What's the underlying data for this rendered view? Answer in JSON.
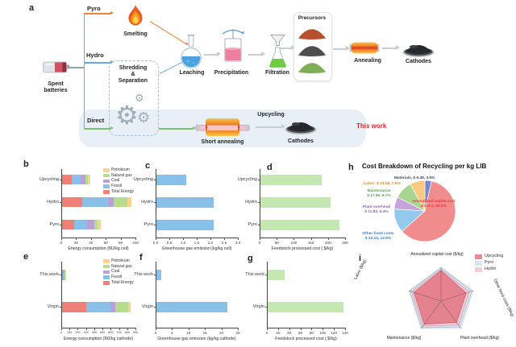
{
  "letters": {
    "a": "a",
    "b": "b",
    "c": "c",
    "d": "d",
    "e": "e",
    "f": "f",
    "g": "g",
    "h": "h",
    "i": "i"
  },
  "panel_a": {
    "labels": {
      "pyro": "Pyro",
      "hydro": "Hydro",
      "direct": "Direct",
      "smelting": "Smelting",
      "spent_batteries": "Spent\nbatteries",
      "shredding": "Shredding\n&\nSeparation",
      "leaching": "Leaching",
      "precipitation": "Precipitation",
      "filtration": "Filtration",
      "precursors": "Precursors",
      "annealing": "Annealing",
      "cathodes_top": "Cathodes",
      "short_annealing": "Short annealing",
      "upcycling": "Upcycling",
      "cathodes_bottom": "Cathodes",
      "this_work": "This work"
    },
    "icons": {
      "gear": "⚙"
    },
    "colors": {
      "pyro_arrow": "#e8863c",
      "hydro_arrow": "#6fa8d8",
      "direct_arrow": "#7cc26e",
      "process_arrow": "#c9cdd2",
      "highlight_band": "#e8eff7",
      "this_work_text": "#e0262a"
    }
  },
  "chart_data": [
    {
      "id": "b",
      "type": "stacked_bar_h",
      "xlabel": "Energy consumption (MJ/kg cell)",
      "categories": [
        "Upcycling",
        "Hydro",
        "Pyro"
      ],
      "series": [
        {
          "name": "Total Energy",
          "color": "#ef8078",
          "values": [
            13,
            27,
            16
          ]
        },
        {
          "name": "Fossil",
          "color": "#89c0e8",
          "values": [
            12,
            35,
            18
          ]
        },
        {
          "name": "Coal",
          "color": "#b9a0d6",
          "values": [
            6,
            8,
            9
          ]
        },
        {
          "name": "Natural gas",
          "color": "#b7dc8e",
          "values": [
            4,
            18,
            5
          ]
        },
        {
          "name": "Petroleum",
          "color": "#f7d492",
          "values": [
            3,
            5,
            4
          ]
        }
      ],
      "totals": [
        38,
        93,
        52
      ],
      "legend": [
        "Petroleum",
        "Natural gas",
        "Coal",
        "Fossil",
        "Total Energy"
      ],
      "xlim": [
        0,
        100
      ],
      "xticks": [
        "0",
        "20",
        "40",
        "60",
        "80",
        "100"
      ]
    },
    {
      "id": "c",
      "type": "bar_h",
      "xlabel": "Greenhouse gas emission (kg/kg cell)",
      "categories": [
        "Upcycling",
        "Hydro",
        "Pyro"
      ],
      "values": [
        1.1,
        2.1,
        2.1
      ],
      "color": "#89c0e8",
      "xlim": [
        0,
        3
      ],
      "xticks": [
        "0.0",
        "0.5",
        "1.0",
        "1.5",
        "2.0",
        "2.5",
        "3.0"
      ]
    },
    {
      "id": "d",
      "type": "bar_h",
      "xlabel": "Feedstock processed cost ( $/kg)",
      "categories": [
        "Upcycling",
        "Hydro",
        "Pyro"
      ],
      "values": [
        180,
        205,
        230
      ],
      "color": "#c5e8b3",
      "xlim": [
        0,
        250
      ],
      "xticks": [
        "0",
        "50",
        "100",
        "150",
        "200",
        "250"
      ]
    },
    {
      "id": "e",
      "type": "stacked_bar_h",
      "xlabel": "Energy consumption (MJ/kg cathode)",
      "categories": [
        "This work",
        "Virgin"
      ],
      "series": [
        {
          "name": "Total Energy",
          "color": "#ef8078",
          "values": [
            6,
            290
          ]
        },
        {
          "name": "Fossil",
          "color": "#89c0e8",
          "values": [
            13,
            300
          ]
        },
        {
          "name": "Coal",
          "color": "#b9a0d6",
          "values": [
            13,
            60
          ]
        },
        {
          "name": "Natural gas",
          "color": "#b7dc8e",
          "values": [
            5,
            150
          ]
        },
        {
          "name": "Petroleum",
          "color": "#f7d492",
          "values": [
            3,
            30
          ]
        }
      ],
      "totals": [
        40,
        830
      ],
      "legend": [
        "Petroleum",
        "Natural gas",
        "Coal",
        "Fossil",
        "Total Energy"
      ],
      "xlim": [
        0,
        900
      ],
      "xticks": [
        "0",
        "100",
        "200",
        "300",
        "400",
        "500",
        "600",
        "700",
        "800",
        "900"
      ]
    },
    {
      "id": "f",
      "type": "bar_h",
      "xlabel": "Greenhouse gas emission (kg/kg cathode)",
      "categories": [
        "This work",
        "Virgin"
      ],
      "values": [
        1.5,
        21.5
      ],
      "color": "#89c0e8",
      "xlim": [
        0,
        25
      ],
      "xticks": [
        "0",
        "5",
        "10",
        "15",
        "20",
        "25"
      ]
    },
    {
      "id": "g",
      "type": "bar_h",
      "xlabel": "Feedstock processed cost ( $/kg)",
      "categories": [
        "This work",
        "Virgin"
      ],
      "values": [
        30,
        135
      ],
      "color": "#c5e8b3",
      "xlim": [
        0,
        140
      ],
      "xticks": [
        "0",
        "20",
        "40",
        "60",
        "80",
        "100",
        "120",
        "140"
      ]
    },
    {
      "id": "h",
      "type": "pie",
      "title": "Cost Breakdown of Recycling per kg LIB",
      "slices": [
        {
          "name": "Materials",
          "value": 6.48,
          "pct": 3.5,
          "color": "#7487d9",
          "label": "Materials, $ 6.48, 3.5%",
          "label_color": "#40486e"
        },
        {
          "name": "Annualized capital cost",
          "value": 110.2,
          "pct": 59.9,
          "color": "#f18c8c",
          "label": "Annualized capital cost\n$ 110.2, 59.9%",
          "label_color": "#e23b3b"
        },
        {
          "name": "Other fixed costs",
          "value": 23.15,
          "pct": 12.6,
          "color": "#92c9ed",
          "label": "Other fixed costs\n$ 23.15, 12.6%",
          "label_color": "#3c7fc0"
        },
        {
          "name": "Plant overhead",
          "value": 11.83,
          "pct": 6.4,
          "color": "#c6a3da",
          "label": "Plant overhead\n$ 11.83, 6.4%",
          "label_color": "#9161b5"
        },
        {
          "name": "Maintenance",
          "value": 17.86,
          "pct": 9.7,
          "color": "#a7d691",
          "label": "Maintenance\n$ 17.86, 9.7%",
          "label_color": "#61a24f"
        },
        {
          "name": "Labor",
          "value": 14.58,
          "pct": 7.9,
          "color": "#f8c97f",
          "label": "Labor: $ 14.58, 7.9%",
          "label_color": "#d89030"
        }
      ]
    },
    {
      "id": "i",
      "type": "radar",
      "axes": [
        "Annualized capital cost ($/kg)",
        "Other fixed costs ($/kg)",
        "Plant overhead ($/kg)",
        "Maintenance ($/kg)",
        "Labor ($/kg)"
      ],
      "series": [
        {
          "name": "Pyro",
          "color": "#b8cfe6",
          "stroke": "#9db9d4",
          "opacity": 0.5,
          "values_relative": [
            0.98,
            0.96,
            0.95,
            0.97,
            0.97
          ]
        },
        {
          "name": "Hydro",
          "color": "#f0b9c4",
          "stroke": "#dd9baa",
          "opacity": 0.55,
          "values_relative": [
            0.93,
            0.88,
            0.88,
            0.91,
            0.91
          ]
        },
        {
          "name": "Upcycling",
          "color": "#e4717c",
          "stroke": "#d45d6b",
          "opacity": 0.8,
          "values_relative": [
            0.9,
            0.78,
            0.78,
            0.84,
            0.84
          ]
        }
      ],
      "legend": [
        "Upcycling",
        "Pyro",
        "Hydro"
      ],
      "legend_colors": [
        "#e88b97",
        "#d9e6f2",
        "#f4ced6"
      ],
      "grid_levels": 5
    }
  ]
}
